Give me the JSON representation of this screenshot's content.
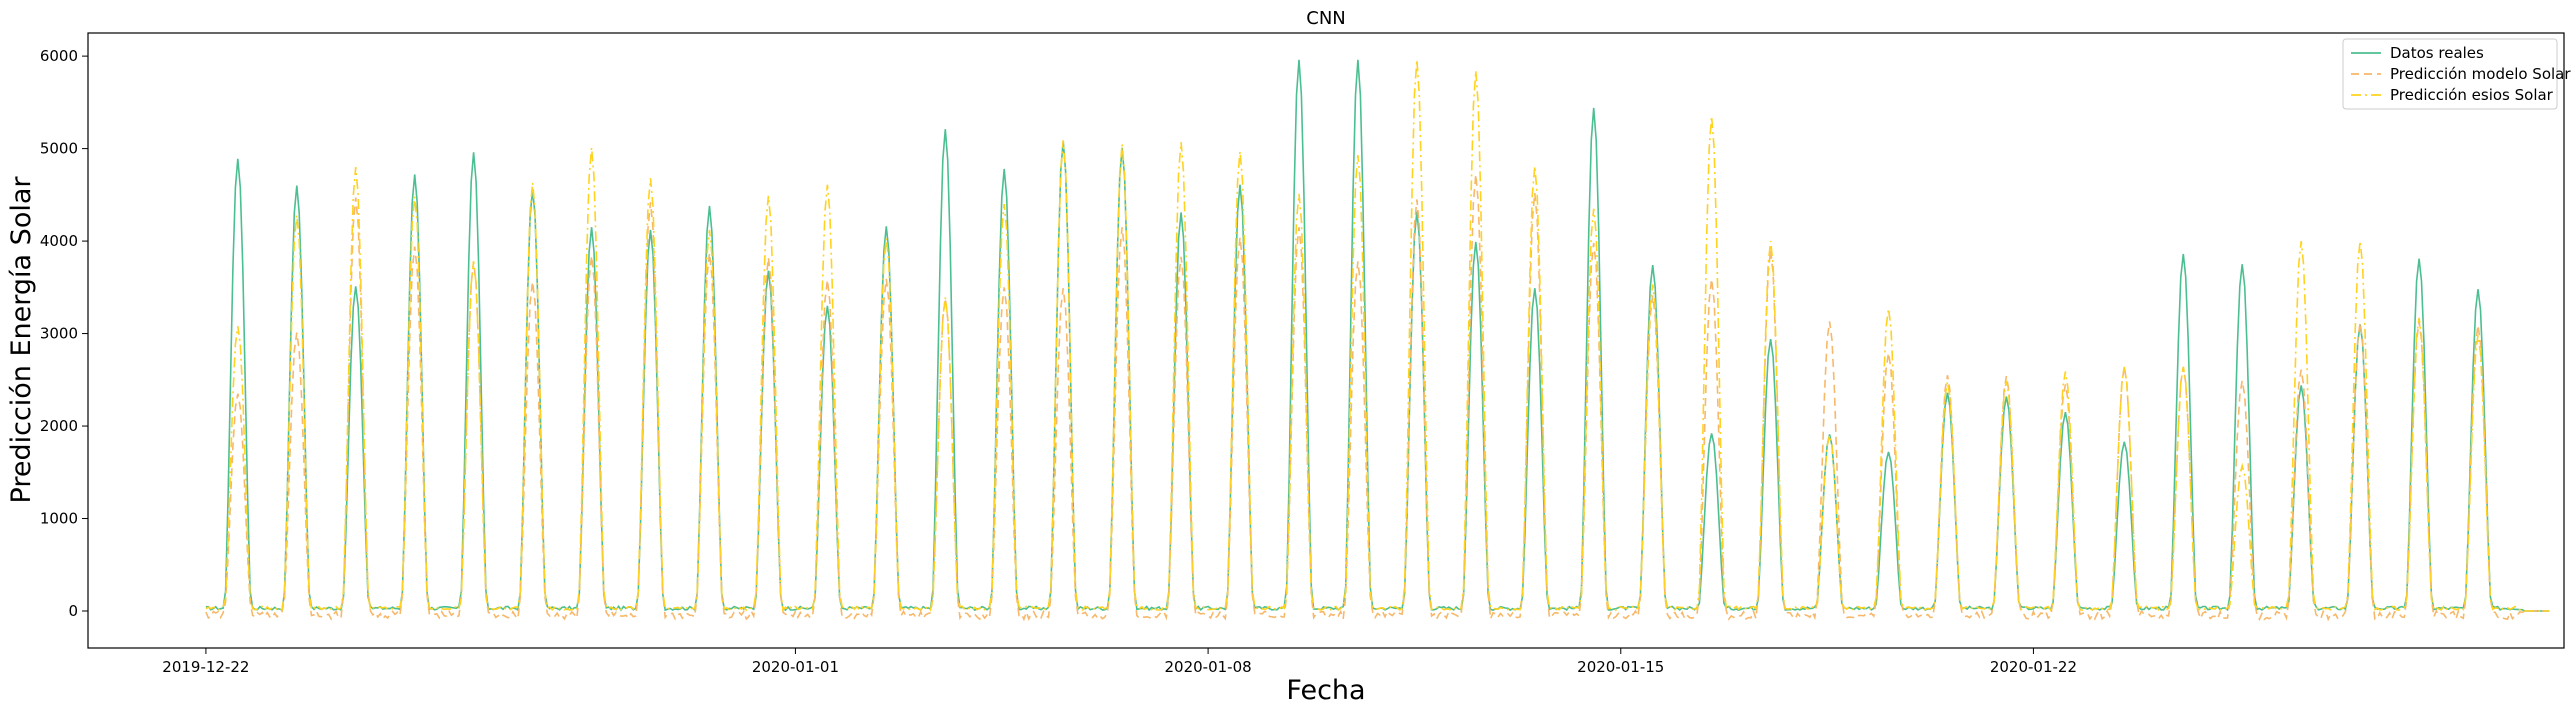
{
  "chart_data": {
    "type": "line",
    "title": "CNN",
    "xlabel": "Fecha",
    "ylabel": "Predicción Energía Solar",
    "x_tick_labels": [
      "2019-12-22",
      "2020-01-01",
      "2020-01-08",
      "2020-01-15",
      "2020-01-22"
    ],
    "x_ticks": [
      "2019-12-22",
      "2020-01-01",
      "2020-01-08",
      "2020-01-15",
      "2020-01-22"
    ],
    "xlim": [
      "2019-12-20",
      "2020-01-31"
    ],
    "ylim": [
      -400,
      6250
    ],
    "y_ticks": [
      0,
      1000,
      2000,
      3000,
      4000,
      5000,
      6000
    ],
    "y_tick_labels": [
      "0",
      "1000",
      "2000",
      "3000",
      "4000",
      "5000",
      "6000"
    ],
    "grid": false,
    "legend_position": "top-right",
    "day_dates": [
      "2019-12-22",
      "2019-12-23",
      "2019-12-24",
      "2019-12-25",
      "2019-12-26",
      "2019-12-27",
      "2019-12-28",
      "2019-12-29",
      "2019-12-30",
      "2019-12-31",
      "2020-01-01",
      "2020-01-02",
      "2020-01-03",
      "2020-01-04",
      "2020-01-05",
      "2020-01-06",
      "2020-01-07",
      "2020-01-08",
      "2020-01-09",
      "2020-01-10",
      "2020-01-11",
      "2020-01-12",
      "2020-01-13",
      "2020-01-14",
      "2020-01-15",
      "2020-01-16",
      "2020-01-17",
      "2020-01-18",
      "2020-01-19",
      "2020-01-20",
      "2020-01-21",
      "2020-01-22",
      "2020-01-23",
      "2020-01-24",
      "2020-01-25",
      "2020-01-26",
      "2020-01-27",
      "2020-01-28",
      "2020-01-29",
      "2020-01-30"
    ],
    "series": [
      {
        "name": "Datos reales",
        "color": "#4bbf91",
        "style": "solid",
        "daily_peaks": [
          4890,
          4600,
          3510,
          4720,
          4960,
          4560,
          4150,
          4120,
          4380,
          3680,
          3300,
          4160,
          5210,
          4780,
          5080,
          5010,
          4310,
          4610,
          5960,
          5960,
          4320,
          3990,
          3490,
          5440,
          3740,
          1920,
          2940,
          1910,
          1720,
          2360,
          2320,
          2150,
          1830,
          3860,
          3750,
          2440,
          3100,
          3810,
          3480,
          0
        ]
      },
      {
        "name": "Predicción modelo Solar",
        "color": "#f7b86a",
        "style": "dashed",
        "daily_peaks": [
          2350,
          3010,
          4470,
          3940,
          3780,
          3560,
          3840,
          4420,
          3870,
          3820,
          3580,
          3590,
          3380,
          3500,
          3490,
          4150,
          3830,
          4040,
          4150,
          3780,
          4450,
          4720,
          4520,
          3980,
          3410,
          3590,
          3900,
          3130,
          2790,
          2550,
          2540,
          2450,
          2640,
          2640,
          2490,
          2610,
          3120,
          3130,
          3090,
          0
        ]
      },
      {
        "name": "Predicción esios Solar",
        "color": "#ffd21f",
        "style": "dashdot",
        "daily_peaks": [
          3080,
          4280,
          4800,
          4480,
          3780,
          4630,
          5010,
          4680,
          4120,
          4490,
          4610,
          4030,
          3390,
          4400,
          5090,
          5050,
          5070,
          4970,
          4510,
          4930,
          5960,
          5840,
          4810,
          4350,
          3530,
          5350,
          4000,
          1900,
          3270,
          2480,
          2490,
          2590,
          2640,
          2640,
          1570,
          4000,
          4000,
          3170,
          2980,
          0
        ]
      }
    ]
  }
}
